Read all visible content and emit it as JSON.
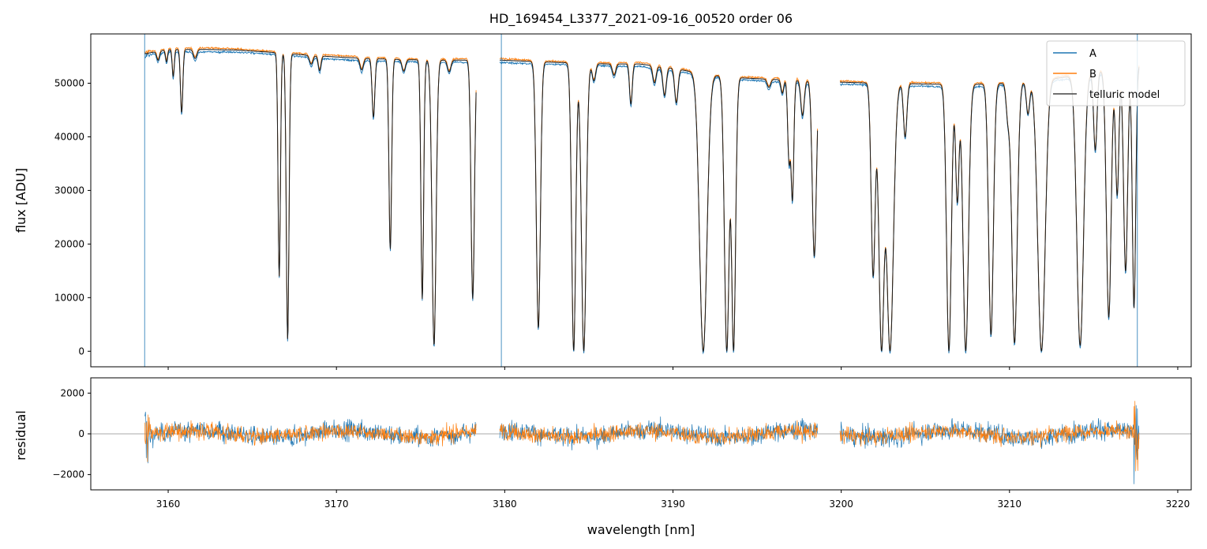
{
  "chart_data": {
    "type": "line",
    "title": "HD_169454_L3377_2021-09-16_00520  order 06",
    "xlabel": "wavelength [nm]",
    "xlim": [
      3155.4,
      3220.8
    ],
    "xticks": [
      3160,
      3170,
      3180,
      3190,
      3200,
      3210,
      3220
    ],
    "top": {
      "ylabel": "flux [ADU]",
      "ylim": [
        -2900,
        59200
      ],
      "yticks": [
        0,
        10000,
        20000,
        30000,
        40000,
        50000
      ],
      "continuum": [
        [
          3158.6,
          55500
        ],
        [
          3160,
          56300
        ],
        [
          3162,
          56300
        ],
        [
          3164,
          56200
        ],
        [
          3166,
          55800
        ],
        [
          3168,
          55300
        ],
        [
          3170,
          54900
        ],
        [
          3172,
          54600
        ],
        [
          3174,
          54400
        ],
        [
          3176,
          54300
        ],
        [
          3178.2,
          54300
        ],
        [
          3179.8,
          54300
        ],
        [
          3182,
          54000
        ],
        [
          3184,
          53800
        ],
        [
          3186,
          53600
        ],
        [
          3188,
          53600
        ],
        [
          3190,
          52800
        ],
        [
          3192,
          51600
        ],
        [
          3194,
          51000
        ],
        [
          3196,
          50700
        ],
        [
          3198,
          50500
        ],
        [
          3200,
          50200
        ],
        [
          3202,
          50000
        ],
        [
          3204,
          49900
        ],
        [
          3206,
          49800
        ],
        [
          3208,
          49800
        ],
        [
          3210,
          50000
        ],
        [
          3212,
          50600
        ],
        [
          3214,
          51400
        ],
        [
          3216,
          52600
        ],
        [
          3217.7,
          53500
        ]
      ],
      "gaps": [
        [
          3178.3,
          3179.7
        ],
        [
          3198.6,
          3199.9
        ]
      ],
      "absorption_lines": [
        [
          3159.4,
          0.03,
          0.08
        ],
        [
          3159.9,
          0.04,
          0.06
        ],
        [
          3160.3,
          0.09,
          0.06
        ],
        [
          3160.8,
          0.21,
          0.07
        ],
        [
          3161.6,
          0.03,
          0.1
        ],
        [
          3166.6,
          0.75,
          0.07
        ],
        [
          3167.1,
          0.96,
          0.08
        ],
        [
          3168.5,
          0.03,
          0.1
        ],
        [
          3169.0,
          0.05,
          0.08
        ],
        [
          3171.5,
          0.04,
          0.1
        ],
        [
          3172.2,
          0.2,
          0.08
        ],
        [
          3173.2,
          0.65,
          0.08
        ],
        [
          3174.0,
          0.04,
          0.1
        ],
        [
          3175.1,
          0.82,
          0.08
        ],
        [
          3175.8,
          0.98,
          0.12
        ],
        [
          3176.7,
          0.04,
          0.1
        ],
        [
          3178.1,
          0.82,
          0.1
        ],
        [
          3182.0,
          0.92,
          0.12
        ],
        [
          3184.1,
          1.0,
          0.12
        ],
        [
          3184.7,
          1.0,
          0.14
        ],
        [
          3185.3,
          0.06,
          0.1
        ],
        [
          3186.5,
          0.04,
          0.1
        ],
        [
          3187.5,
          0.14,
          0.08
        ],
        [
          3188.9,
          0.06,
          0.1
        ],
        [
          3189.5,
          0.1,
          0.1
        ],
        [
          3190.2,
          0.12,
          0.1
        ],
        [
          3191.8,
          1.0,
          0.22
        ],
        [
          3193.2,
          1.0,
          0.14
        ],
        [
          3193.6,
          1.0,
          0.12
        ],
        [
          3195.7,
          0.03,
          0.1
        ],
        [
          3196.5,
          0.05,
          0.08
        ],
        [
          3196.9,
          0.3,
          0.08
        ],
        [
          3197.1,
          0.44,
          0.08
        ],
        [
          3197.7,
          0.13,
          0.1
        ],
        [
          3198.4,
          0.65,
          0.12
        ],
        [
          3201.9,
          0.72,
          0.12
        ],
        [
          3202.4,
          1.0,
          0.16
        ],
        [
          3202.9,
          1.0,
          0.2
        ],
        [
          3203.8,
          0.2,
          0.1
        ],
        [
          3206.4,
          1.0,
          0.14
        ],
        [
          3206.9,
          0.44,
          0.1
        ],
        [
          3207.4,
          1.0,
          0.16
        ],
        [
          3208.9,
          0.94,
          0.14
        ],
        [
          3209.9,
          0.12,
          0.1
        ],
        [
          3210.3,
          0.97,
          0.16
        ],
        [
          3211.1,
          0.12,
          0.1
        ],
        [
          3211.9,
          1.0,
          0.22
        ],
        [
          3214.2,
          0.98,
          0.2
        ],
        [
          3215.1,
          0.28,
          0.1
        ],
        [
          3215.9,
          0.88,
          0.14
        ],
        [
          3216.4,
          0.45,
          0.1
        ],
        [
          3216.9,
          0.72,
          0.12
        ],
        [
          3217.4,
          0.85,
          0.1
        ]
      ]
    },
    "bottom": {
      "ylabel": "residual",
      "ylim": [
        -2750,
        2750
      ],
      "yticks": [
        -2000,
        0,
        2000
      ],
      "zero_line": true
    },
    "series": [
      {
        "name": "A",
        "color": "#1f77b4"
      },
      {
        "name": "B",
        "color": "#ff7f0e"
      },
      {
        "name": "telluric model",
        "color": "#444444"
      }
    ],
    "legend_position": "top-right"
  }
}
